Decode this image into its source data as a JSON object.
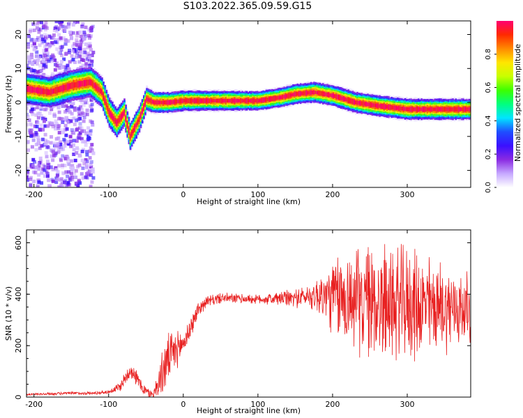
{
  "title": "S103.2022.365.09.59.G15",
  "chart_data": [
    {
      "type": "heatmap",
      "subtype": "spectrogram",
      "xlabel": "Height of straight line (km)",
      "ylabel": "Frequency (Hz)",
      "xlim": [
        -210,
        385
      ],
      "ylim": [
        -25,
        24
      ],
      "x_ticks": [
        "-200",
        "-100",
        "0",
        "100",
        "200",
        "300"
      ],
      "y_ticks": [
        "20",
        "10",
        "0",
        "-10",
        "-20"
      ],
      "colorbar": {
        "label": "Normalized spectral amplitude",
        "range": [
          0.0,
          1.0
        ],
        "ticks": [
          "0.0",
          "0.2",
          "0.4",
          "0.6",
          "0.8"
        ],
        "colors": [
          "#ffffff",
          "#c6a8ff",
          "#8a2be2",
          "#3a10ff",
          "#1f4dff",
          "#00e5ff",
          "#00ff7f",
          "#3cff00",
          "#c8ff00",
          "#ffe600",
          "#ff8a00",
          "#ff2a00",
          "#ff0070"
        ]
      },
      "ridge": [
        {
          "x": -210,
          "y": 4
        },
        {
          "x": -180,
          "y": 3
        },
        {
          "x": -150,
          "y": 5
        },
        {
          "x": -125,
          "y": 6
        },
        {
          "x": -110,
          "y": 3
        },
        {
          "x": -100,
          "y": -3
        },
        {
          "x": -90,
          "y": -6
        },
        {
          "x": -80,
          "y": -3
        },
        {
          "x": -72,
          "y": -10
        },
        {
          "x": -60,
          "y": -5
        },
        {
          "x": -50,
          "y": 1
        },
        {
          "x": -40,
          "y": 0
        },
        {
          "x": -20,
          "y": 0
        },
        {
          "x": 0,
          "y": 0.5
        },
        {
          "x": 50,
          "y": 0.5
        },
        {
          "x": 100,
          "y": 0.5
        },
        {
          "x": 130,
          "y": 1.5
        },
        {
          "x": 150,
          "y": 2.5
        },
        {
          "x": 175,
          "y": 3
        },
        {
          "x": 200,
          "y": 2
        },
        {
          "x": 230,
          "y": 0
        },
        {
          "x": 260,
          "y": -1
        },
        {
          "x": 300,
          "y": -2
        },
        {
          "x": 385,
          "y": -2
        }
      ],
      "ridge_width_hz": [
        {
          "x": -210,
          "w": 3
        },
        {
          "x": -110,
          "w": 3
        },
        {
          "x": -60,
          "w": 2.5
        },
        {
          "x": -40,
          "w": 2
        },
        {
          "x": 100,
          "w": 1.8
        },
        {
          "x": 200,
          "w": 2
        },
        {
          "x": 385,
          "w": 2
        }
      ],
      "noise_region_x": [
        -210,
        -120
      ],
      "noise_region_y": [
        -25,
        24
      ]
    },
    {
      "type": "line",
      "xlabel": "Height of straight line (km)",
      "ylabel": "SNR (10 * v/v)",
      "xlim": [
        -210,
        385
      ],
      "ylim": [
        0,
        650
      ],
      "x_ticks": [
        "-200",
        "-100",
        "0",
        "100",
        "200",
        "300"
      ],
      "y_ticks": [
        "0",
        "200",
        "400",
        "600"
      ],
      "color": "#e82020",
      "mean_profile": [
        {
          "x": -210,
          "y": 10
        },
        {
          "x": -150,
          "y": 15
        },
        {
          "x": -120,
          "y": 15
        },
        {
          "x": -100,
          "y": 20
        },
        {
          "x": -85,
          "y": 40
        },
        {
          "x": -70,
          "y": 110
        },
        {
          "x": -60,
          "y": 60
        },
        {
          "x": -50,
          "y": 20
        },
        {
          "x": -40,
          "y": 10
        },
        {
          "x": -30,
          "y": 80
        },
        {
          "x": -20,
          "y": 150
        },
        {
          "x": -10,
          "y": 180
        },
        {
          "x": 0,
          "y": 210
        },
        {
          "x": 10,
          "y": 270
        },
        {
          "x": 20,
          "y": 340
        },
        {
          "x": 30,
          "y": 370
        },
        {
          "x": 50,
          "y": 385
        },
        {
          "x": 100,
          "y": 380
        },
        {
          "x": 150,
          "y": 385
        },
        {
          "x": 175,
          "y": 395
        },
        {
          "x": 200,
          "y": 390
        },
        {
          "x": 250,
          "y": 370
        },
        {
          "x": 300,
          "y": 360
        },
        {
          "x": 385,
          "y": 340
        }
      ],
      "noise_amplitude": [
        {
          "x": -210,
          "a": 5
        },
        {
          "x": -100,
          "a": 8
        },
        {
          "x": -70,
          "a": 40
        },
        {
          "x": -40,
          "a": 20
        },
        {
          "x": -25,
          "a": 120
        },
        {
          "x": 0,
          "a": 60
        },
        {
          "x": 30,
          "a": 25
        },
        {
          "x": 100,
          "a": 20
        },
        {
          "x": 170,
          "a": 50
        },
        {
          "x": 210,
          "a": 200
        },
        {
          "x": 260,
          "a": 260
        },
        {
          "x": 310,
          "a": 240
        },
        {
          "x": 385,
          "a": 150
        }
      ]
    }
  ]
}
